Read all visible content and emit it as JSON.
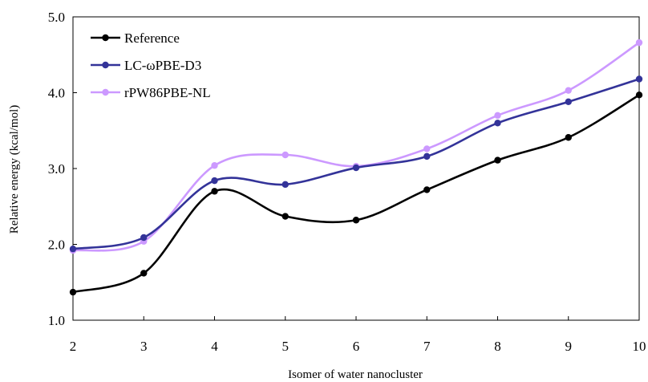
{
  "chart_data": {
    "type": "line",
    "title": "",
    "xlabel": "Isomer of water nanocluster",
    "ylabel": "Relative energy (kcal/mol)",
    "x": [
      2,
      3,
      4,
      5,
      6,
      7,
      8,
      9,
      10
    ],
    "xlim": [
      2,
      10
    ],
    "ylim": [
      1.0,
      5.0
    ],
    "yticks": [
      "1.0",
      "2.0",
      "3.0",
      "4.0",
      "5.0"
    ],
    "xticks": [
      "2",
      "3",
      "4",
      "5",
      "6",
      "7",
      "8",
      "9",
      "10"
    ],
    "grid": false,
    "smooth": true,
    "legend_position": "top-left",
    "series": [
      {
        "name": "Reference",
        "color": "#000000",
        "values": [
          1.37,
          1.62,
          2.7,
          2.37,
          2.32,
          2.72,
          3.11,
          3.41,
          3.97
        ]
      },
      {
        "name": "LC-ωPBE-D3",
        "color": "#333399",
        "values": [
          1.94,
          2.09,
          2.84,
          2.79,
          3.01,
          3.16,
          3.6,
          3.88,
          4.18
        ]
      },
      {
        "name": "rPW86PBE-NL",
        "color": "#cc99ff",
        "values": [
          1.92,
          2.04,
          3.04,
          3.18,
          3.03,
          3.26,
          3.7,
          4.03,
          4.66
        ]
      }
    ]
  }
}
